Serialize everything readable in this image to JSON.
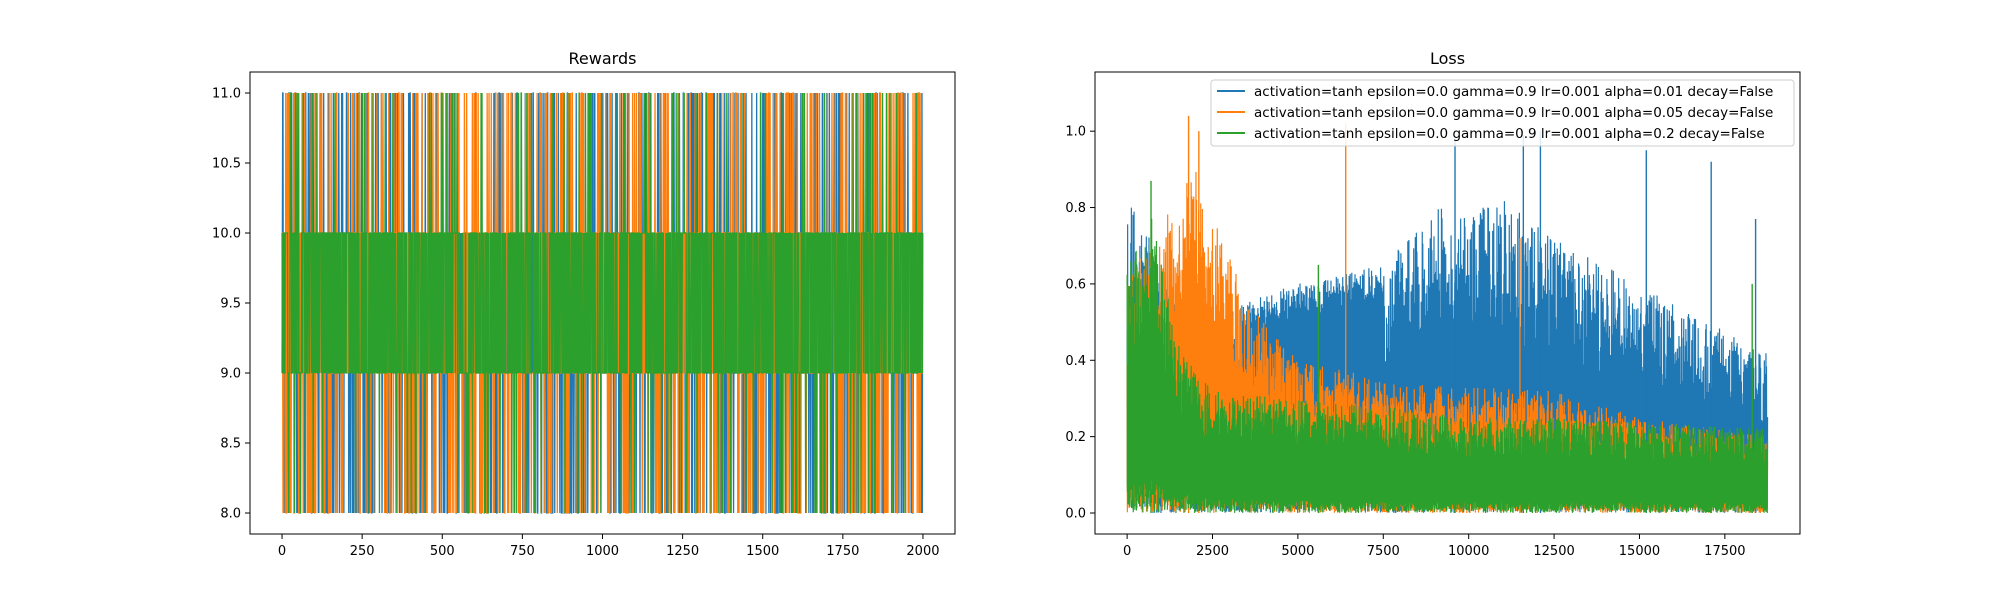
{
  "chart_data": [
    {
      "type": "line",
      "title": "Rewards",
      "xlabel": "",
      "ylabel": "",
      "xlim": [
        -100,
        2100
      ],
      "ylim": [
        7.85,
        11.15
      ],
      "xticks": [
        0,
        250,
        500,
        750,
        1000,
        1250,
        1500,
        1750,
        2000
      ],
      "yticks": [
        8.0,
        8.5,
        9.0,
        9.5,
        10.0,
        10.5,
        11.0
      ],
      "xtick_labels": [
        "0",
        "250",
        "500",
        "750",
        "1000",
        "1250",
        "1500",
        "1750",
        "2000"
      ],
      "ytick_labels": [
        "8.0",
        "8.5",
        "9.0",
        "9.5",
        "10.0",
        "10.5",
        "11.0"
      ],
      "grid": false,
      "series": [
        {
          "color": "#1f77b4",
          "x_range": [
            0,
            1999
          ],
          "pattern": "oscillates among 8, 9, 10 and 11 every episode"
        },
        {
          "color": "#ff7f0e",
          "x_range": [
            0,
            1999
          ],
          "pattern": "oscillates among 8, 9, 10 and 11 every episode"
        },
        {
          "color": "#2ca02c",
          "x_range": [
            0,
            1999
          ],
          "pattern": "mostly between 9 and 10 with frequent drops to 8 and spikes to 11"
        }
      ]
    },
    {
      "type": "line",
      "title": "Loss",
      "xlabel": "",
      "ylabel": "",
      "xlim": [
        -940,
        19700
      ],
      "ylim": [
        -0.055,
        1.155
      ],
      "xticks": [
        0,
        2500,
        5000,
        7500,
        10000,
        12500,
        15000,
        17500
      ],
      "yticks": [
        0.0,
        0.2,
        0.4,
        0.6,
        0.8,
        1.0
      ],
      "xtick_labels": [
        "0",
        "2500",
        "5000",
        "7500",
        "10000",
        "12500",
        "15000",
        "17500"
      ],
      "ytick_labels": [
        "0.0",
        "0.2",
        "0.4",
        "0.6",
        "0.8",
        "1.0"
      ],
      "grid": false,
      "legend_position": "top-right",
      "series": [
        {
          "name": "activation=tanh epsilon=0.0 gamma=0.9 lr=0.001 alpha=0.01 decay=False",
          "color": "#1f77b4",
          "x_range": [
            0,
            18750
          ],
          "envelope": [
            [
              0,
              0.85
            ],
            [
              2000,
              0.45
            ],
            [
              3500,
              0.56
            ],
            [
              5000,
              0.6
            ],
            [
              7500,
              0.65
            ],
            [
              9000,
              0.8
            ],
            [
              11000,
              0.82
            ],
            [
              12500,
              0.72
            ],
            [
              15000,
              0.6
            ],
            [
              17000,
              0.5
            ],
            [
              18750,
              0.42
            ]
          ],
          "peaks": [
            [
              9600,
              0.98
            ],
            [
              11600,
              0.99
            ],
            [
              12100,
              1.0
            ],
            [
              15200,
              0.95
            ],
            [
              17100,
              0.92
            ],
            [
              18400,
              0.77
            ]
          ]
        },
        {
          "name": "activation=tanh epsilon=0.0 gamma=0.9 lr=0.001 alpha=0.05 decay=False",
          "color": "#ff7f0e",
          "x_range": [
            0,
            18750
          ],
          "envelope": [
            [
              0,
              0.62
            ],
            [
              1000,
              0.75
            ],
            [
              2000,
              0.92
            ],
            [
              2500,
              0.8
            ],
            [
              3500,
              0.55
            ],
            [
              5000,
              0.4
            ],
            [
              7500,
              0.35
            ],
            [
              10000,
              0.33
            ],
            [
              12500,
              0.32
            ],
            [
              15000,
              0.25
            ],
            [
              18750,
              0.2
            ]
          ],
          "peaks": [
            [
              1800,
              1.04
            ],
            [
              2100,
              1.0
            ],
            [
              6400,
              1.02
            ],
            [
              11500,
              0.72
            ]
          ]
        },
        {
          "name": "activation=tanh epsilon=0.0 gamma=0.9 lr=0.001 alpha=0.2 decay=False",
          "color": "#2ca02c",
          "x_range": [
            0,
            18750
          ],
          "envelope": [
            [
              0,
              0.65
            ],
            [
              700,
              0.78
            ],
            [
              1500,
              0.45
            ],
            [
              2500,
              0.32
            ],
            [
              5000,
              0.3
            ],
            [
              7500,
              0.28
            ],
            [
              10000,
              0.25
            ],
            [
              12500,
              0.25
            ],
            [
              15000,
              0.24
            ],
            [
              18750,
              0.22
            ]
          ],
          "peaks": [
            [
              700,
              0.87
            ],
            [
              5600,
              0.65
            ],
            [
              18300,
              0.6
            ]
          ]
        }
      ]
    }
  ]
}
